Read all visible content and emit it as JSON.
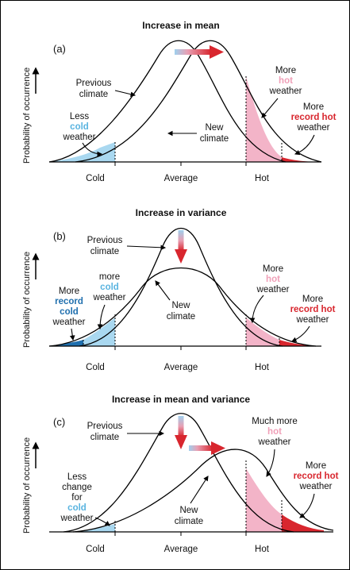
{
  "y_axis_label": "Probability of occurrence",
  "x_ticks": [
    "Cold",
    "Average",
    "Hot"
  ],
  "colors": {
    "light_blue": "#a9d8f0",
    "dark_blue": "#1f6fae",
    "pink": "#f3b4c8",
    "red": "#d8262e",
    "cold_text": "#5ab4e0",
    "hot_text": "#f0a0b8",
    "record_hot_text": "#d8262e"
  },
  "panels": [
    {
      "title": "Increase in mean",
      "tag": "(a)",
      "previous": [
        "Previous",
        "climate"
      ],
      "new": [
        "New",
        "climate"
      ],
      "cold_note": {
        "l1": "Less",
        "l2": "cold",
        "l3": "weather"
      },
      "hot_note": {
        "l1": "More",
        "l2": "hot",
        "l3": "weather"
      },
      "record_hot_note": {
        "l1": "More",
        "l2": "record hot",
        "l3": "weather"
      }
    },
    {
      "title": "Increase in variance",
      "tag": "(b)",
      "previous": [
        "Previous",
        "climate"
      ],
      "new": [
        "New",
        "climate"
      ],
      "record_cold_note": {
        "l1": "More",
        "l2": "record",
        "l3": "cold",
        "l4": "weather"
      },
      "cold_note": {
        "l1": "more",
        "l2": "cold",
        "l3": "weather"
      },
      "hot_note": {
        "l1": "More",
        "l2": "hot",
        "l3": "weather"
      },
      "record_hot_note": {
        "l1": "More",
        "l2": "record hot",
        "l3": "weather"
      }
    },
    {
      "title": "Increase in mean and variance",
      "tag": "(c)",
      "previous": [
        "Previous",
        "climate"
      ],
      "new": [
        "New",
        "climate"
      ],
      "cold_note": {
        "l1": "Less",
        "l2": "change",
        "l3": "for",
        "l4": "cold",
        "l5": "weather"
      },
      "hot_note": {
        "l1": "Much more",
        "l2": "hot",
        "l3": "weather"
      },
      "record_hot_note": {
        "l1": "More",
        "l2": "record hot",
        "l3": "weather"
      }
    }
  ]
}
